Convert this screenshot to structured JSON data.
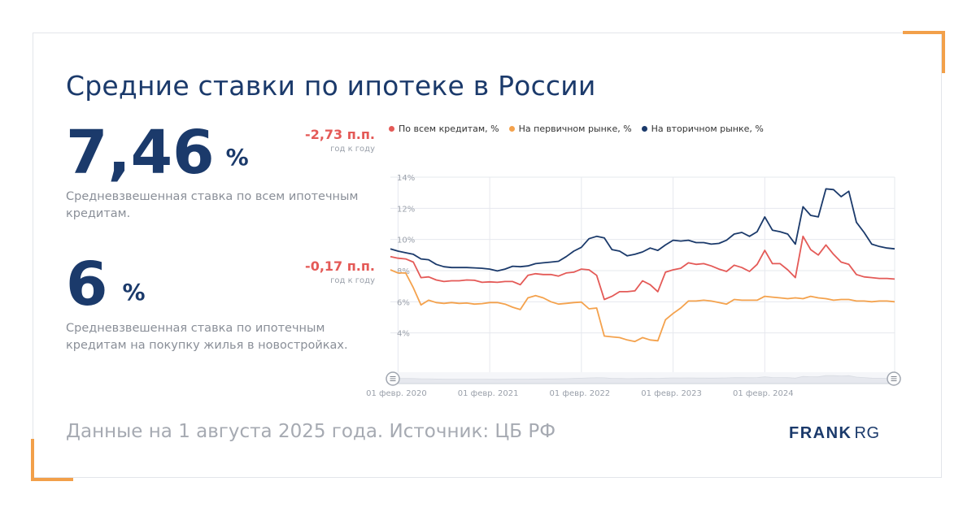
{
  "title": "Средние ставки по ипотеке в России",
  "kpis": [
    {
      "value": "7,46",
      "unit": "%",
      "change": "-2,73 п.п.",
      "period": "год к году",
      "description": "Средневзвешенная ставка по всем ипотечным кредитам."
    },
    {
      "value": "6",
      "unit": "%",
      "change": "-0,17 п.п.",
      "period": "год к году",
      "description": "Средневзвешенная ставка по ипотечным кредитам на покупку жилья в новостройках."
    }
  ],
  "footer_note": "Данные на 1 августа 2025 года. Источник: ЦБ РФ",
  "logo": {
    "main": "FRANK",
    "sub": "RG"
  },
  "colors": {
    "all": "#e45a57",
    "primary": "#f4a24d",
    "secondary": "#1b3a6b",
    "accent": "#f2a04a"
  },
  "chart_data": {
    "type": "line",
    "title": "",
    "xlabel": "",
    "ylabel": "",
    "ylim": [
      2,
      14
    ],
    "y_ticks": [
      4,
      6,
      8,
      10,
      12,
      14
    ],
    "y_tick_labels": [
      "4%",
      "6%",
      "8%",
      "10%",
      "12%",
      "14%"
    ],
    "x_ticks": [
      1,
      13,
      25,
      37,
      49
    ],
    "x_tick_labels": [
      "01 февр. 2020",
      "01 февр. 2021",
      "01 февр. 2022",
      "01 февр. 2023",
      "01 февр. 2024"
    ],
    "x_start_month": "2020-01",
    "legend_position": "top",
    "grid": true,
    "series": [
      {
        "name": "По всем кредитам, %",
        "color": "#e45a57",
        "values": [
          8.9,
          8.8,
          8.75,
          8.55,
          7.55,
          7.6,
          7.4,
          7.3,
          7.35,
          7.35,
          7.4,
          7.38,
          7.25,
          7.28,
          7.25,
          7.3,
          7.3,
          7.1,
          7.7,
          7.8,
          7.75,
          7.75,
          7.65,
          7.85,
          7.9,
          8.1,
          8.05,
          7.7,
          6.15,
          6.35,
          6.65,
          6.65,
          6.7,
          7.35,
          7.1,
          6.65,
          7.9,
          8.05,
          8.15,
          8.5,
          8.4,
          8.45,
          8.3,
          8.1,
          7.95,
          8.35,
          8.2,
          7.95,
          8.4,
          9.3,
          8.45,
          8.45,
          8.05,
          7.55,
          10.2,
          9.35,
          9.0,
          9.65,
          9.05,
          8.55,
          8.4,
          7.75,
          7.6,
          7.55,
          7.5,
          7.5,
          7.46
        ]
      },
      {
        "name": "На первичном рынке, %",
        "color": "#f4a24d",
        "values": [
          8.05,
          7.85,
          7.85,
          6.9,
          5.8,
          6.1,
          5.95,
          5.9,
          5.95,
          5.9,
          5.92,
          5.85,
          5.88,
          5.95,
          5.95,
          5.85,
          5.65,
          5.5,
          6.25,
          6.4,
          6.25,
          6.0,
          5.85,
          5.9,
          5.95,
          5.98,
          5.55,
          5.6,
          3.8,
          3.75,
          3.7,
          3.55,
          3.45,
          3.7,
          3.55,
          3.5,
          4.85,
          5.25,
          5.6,
          6.05,
          6.05,
          6.1,
          6.05,
          5.95,
          5.85,
          6.15,
          6.1,
          6.1,
          6.1,
          6.35,
          6.3,
          6.25,
          6.2,
          6.25,
          6.2,
          6.35,
          6.25,
          6.2,
          6.1,
          6.15,
          6.15,
          6.05,
          6.05,
          6.0,
          6.05,
          6.05,
          6.0
        ]
      },
      {
        "name": "На вторичном рынке, %",
        "color": "#1b3a6b",
        "values": [
          9.4,
          9.25,
          9.15,
          9.05,
          8.75,
          8.7,
          8.4,
          8.25,
          8.2,
          8.2,
          8.2,
          8.18,
          8.15,
          8.1,
          7.98,
          8.1,
          8.28,
          8.25,
          8.3,
          8.45,
          8.5,
          8.55,
          8.6,
          8.9,
          9.25,
          9.5,
          10.05,
          10.2,
          10.1,
          9.35,
          9.25,
          8.95,
          9.05,
          9.2,
          9.45,
          9.3,
          9.65,
          9.95,
          9.9,
          9.95,
          9.8,
          9.8,
          9.7,
          9.75,
          9.95,
          10.35,
          10.45,
          10.2,
          10.5,
          11.45,
          10.6,
          10.5,
          10.35,
          9.7,
          12.1,
          11.55,
          11.45,
          13.25,
          13.2,
          12.75,
          13.1,
          11.1,
          10.45,
          9.7,
          9.55,
          9.45,
          9.4
        ]
      }
    ]
  }
}
